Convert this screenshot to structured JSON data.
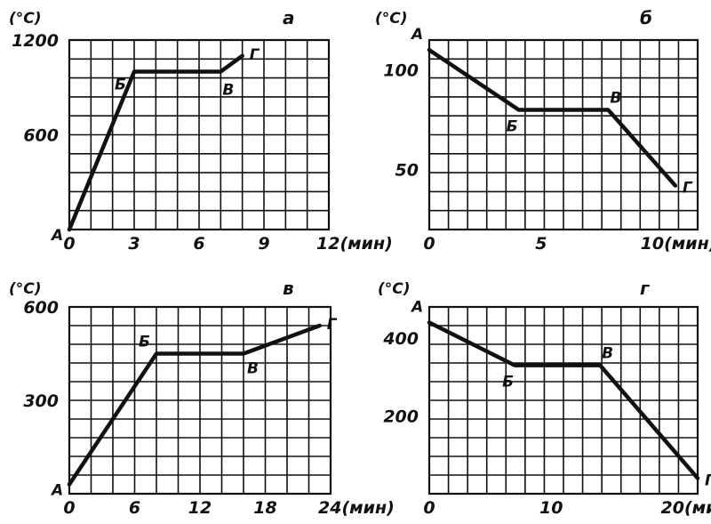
{
  "chart_data": [
    {
      "type": "line",
      "title": "а",
      "ylabel": "(°C)",
      "xlabel": "(мин)",
      "x_ticks": [
        0,
        3,
        6,
        9,
        12
      ],
      "x_tick_labels": [
        "0",
        "3",
        "6",
        "9",
        "12(мин)"
      ],
      "y_ticks": [
        600,
        1200
      ],
      "y_tick_labels": [
        "600",
        "1200"
      ],
      "xlim": [
        0,
        12
      ],
      "ylim": [
        0,
        1200
      ],
      "grid": true,
      "series": [
        {
          "x": [
            0,
            3,
            7,
            8
          ],
          "y": [
            0,
            1000,
            1000,
            1100
          ],
          "point_labels": [
            "А",
            "Б",
            "В",
            "Г"
          ]
        }
      ]
    },
    {
      "type": "line",
      "title": "б",
      "ylabel": "(°C)",
      "xlabel": "(мин)",
      "x_ticks": [
        0,
        5,
        10
      ],
      "x_tick_labels": [
        "0",
        "5",
        "10(мин)"
      ],
      "y_ticks": [
        50,
        100
      ],
      "y_tick_labels": [
        "50",
        "100"
      ],
      "xlim": [
        0,
        12
      ],
      "ylim": [
        20,
        115
      ],
      "grid": true,
      "series": [
        {
          "x": [
            0,
            4,
            8,
            11
          ],
          "y": [
            110,
            80,
            80,
            42
          ],
          "point_labels": [
            "А",
            "Б",
            "В",
            "Г"
          ]
        }
      ]
    },
    {
      "type": "line",
      "title": "в",
      "ylabel": "(°C)",
      "xlabel": "(мин)",
      "x_ticks": [
        0,
        6,
        12,
        18,
        24
      ],
      "x_tick_labels": [
        "0",
        "6",
        "12",
        "18",
        "24(мин)"
      ],
      "y_ticks": [
        300,
        600
      ],
      "y_tick_labels": [
        "300",
        "600"
      ],
      "xlim": [
        0,
        24
      ],
      "ylim": [
        0,
        600
      ],
      "grid": true,
      "series": [
        {
          "x": [
            0,
            8,
            16,
            23
          ],
          "y": [
            30,
            450,
            450,
            540
          ],
          "point_labels": [
            "А",
            "Б",
            "В",
            "Г"
          ]
        }
      ]
    },
    {
      "type": "line",
      "title": "г",
      "ylabel": "(°C)",
      "xlabel": "(мин)",
      "x_ticks": [
        0,
        10,
        20
      ],
      "x_tick_labels": [
        "0",
        "10",
        "20(мин)"
      ],
      "y_ticks": [
        200,
        400
      ],
      "y_tick_labels": [
        "200",
        "400"
      ],
      "xlim": [
        0,
        22
      ],
      "ylim": [
        0,
        480
      ],
      "grid": true,
      "series": [
        {
          "x": [
            0,
            7,
            14,
            22
          ],
          "y": [
            440,
            330,
            330,
            40
          ],
          "point_labels": [
            "А",
            "Б",
            "В",
            "Г"
          ]
        }
      ]
    }
  ]
}
